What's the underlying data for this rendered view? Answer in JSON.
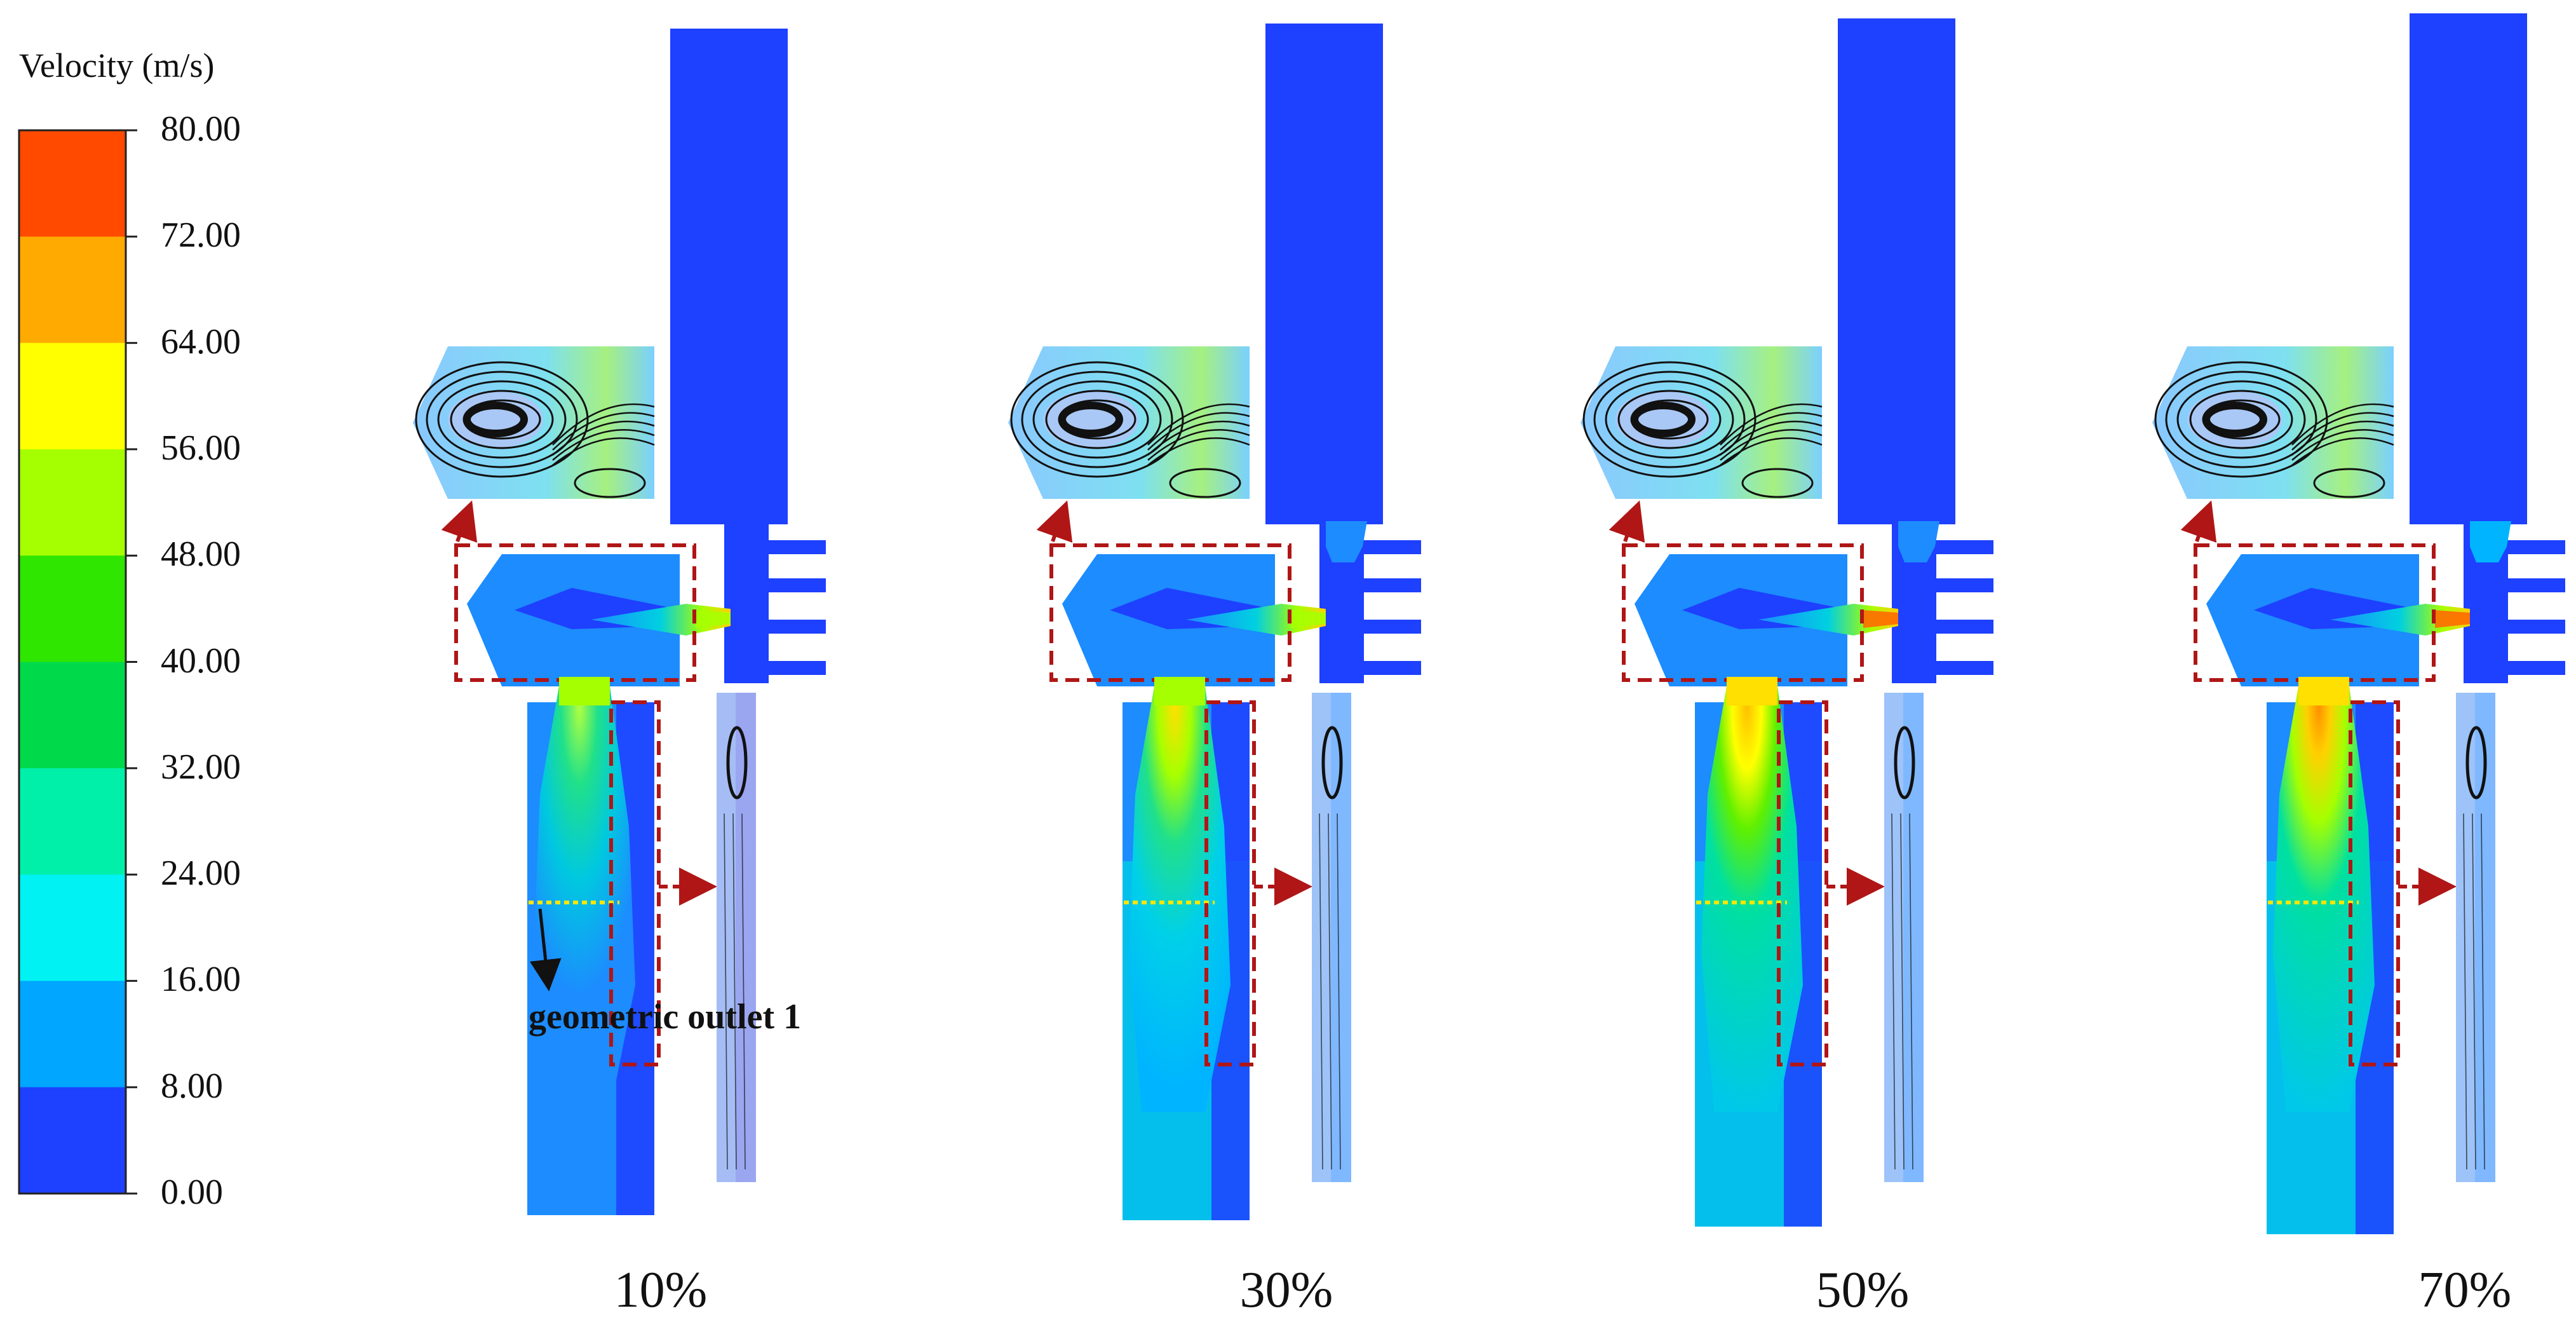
{
  "legend": {
    "title": "Velocity (m/s)",
    "ticks": [
      "80.00",
      "72.00",
      "64.00",
      "56.00",
      "48.00",
      "40.00",
      "32.00",
      "24.00",
      "16.00",
      "8.00",
      "0.00"
    ],
    "colors": [
      "#ff4a00",
      "#ffaa00",
      "#ffff00",
      "#a6ff00",
      "#2ee600",
      "#00d94a",
      "#00f0aa",
      "#00f2f2",
      "#00a6ff",
      "#1e40ff"
    ]
  },
  "annotation": {
    "outlet_label": "geometric outlet 1"
  },
  "cases": [
    {
      "label": "10%"
    },
    {
      "label": "30%"
    },
    {
      "label": "50%"
    },
    {
      "label": "70%"
    }
  ],
  "colors": {
    "deep_blue": "#1e40ff",
    "mid_blue": "#1c8cff",
    "cyan_blue": "#00b4ff",
    "light_blue": "#8ac8ff",
    "pale_blue": "#a9c8f5",
    "lavender": "#9aa6f0",
    "streamline": "#111111",
    "frame_red": "#b01616",
    "dotted_line": "#ffe600"
  }
}
